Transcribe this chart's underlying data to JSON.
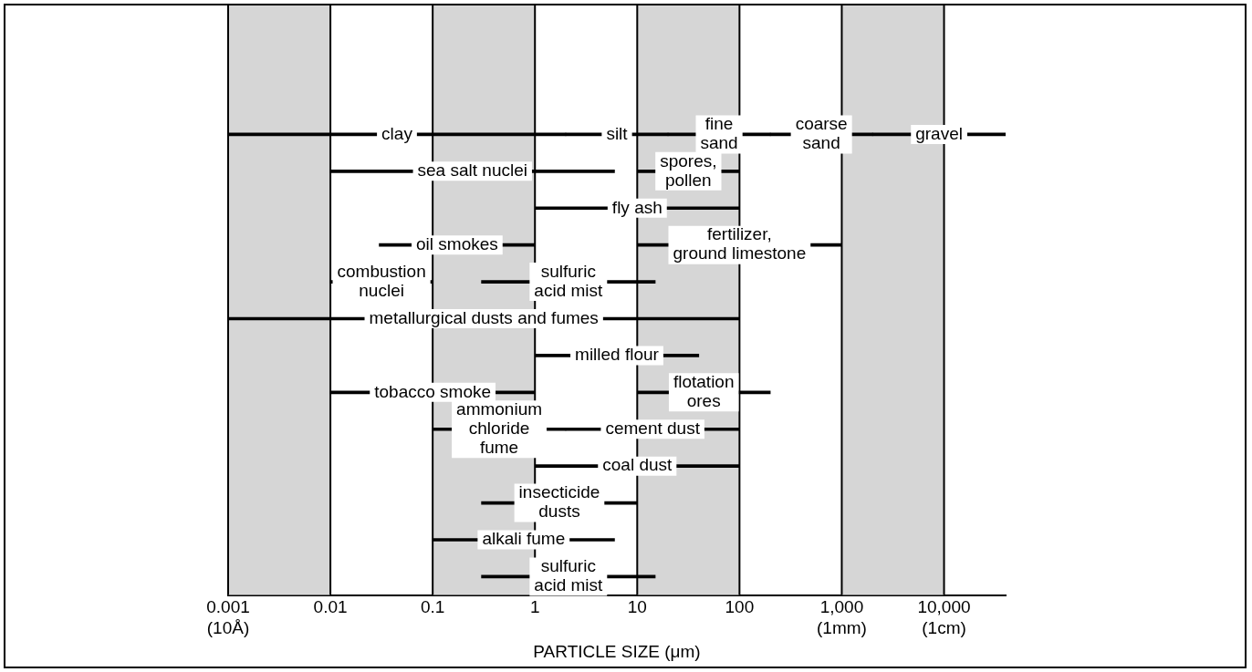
{
  "chart_data": {
    "type": "bar",
    "orientation": "horizontal",
    "grid": "x",
    "log": "x",
    "xlabel": "PARTICLE SIZE (μm)",
    "tick_labels": "x",
    "categories": [
      null,
      null,
      null,
      null,
      null,
      null,
      null,
      null,
      null,
      null,
      null,
      null,
      null,
      null,
      null,
      null
    ],
    "xlim": [
      0.001,
      40000
    ],
    "xticks": [
      {
        "value": 0.001,
        "label": "0.001\n(10Å)"
      },
      {
        "value": 0.01,
        "label": "0.01"
      },
      {
        "value": 0.1,
        "label": "0.1"
      },
      {
        "value": 1,
        "label": "1"
      },
      {
        "value": 10,
        "label": "10"
      },
      {
        "value": 100,
        "label": "100"
      },
      {
        "value": 1000,
        "label": "1,000\n(1mm)"
      },
      {
        "value": 10000,
        "label": "10,000\n(1cm)"
      }
    ],
    "bands": [
      {
        "axis": "x",
        "from": 0.001,
        "to": 0.01,
        "color": "#d6d6d6"
      },
      {
        "axis": "x",
        "from": 0.1,
        "to": 1,
        "color": "#d6d6d6"
      },
      {
        "axis": "x",
        "from": 10,
        "to": 100,
        "color": "#d6d6d6"
      },
      {
        "axis": "x",
        "from": 1000,
        "to": 10000,
        "color": "#d6d6d6"
      }
    ],
    "series": [
      {
        "color": "#000000",
        "base": [
          null,
          null,
          null,
          0.001,
          0.01,
          1,
          0.03,
          0.01,
          0.001,
          1,
          0.01,
          0.1,
          1,
          0.3,
          0.1,
          0.3
        ],
        "values": [
          null,
          null,
          null,
          1.999,
          5.99,
          99,
          0.97,
          0.09,
          99.999,
          39,
          0.99,
          1.9,
          99,
          9.7,
          5.9,
          14.7
        ],
        "value_labels": [
          null,
          null,
          null,
          "clay",
          "sea salt nuclei",
          "fly ash",
          "oil smokes",
          "combustion\nnuclei",
          "metallurgical dusts and fumes",
          "milled flour",
          "tobacco smoke",
          "ammonium\nchloride\nfume",
          "coal dust",
          "insecticide\ndusts",
          "alkali fume",
          "sulfuric\nacid mist"
        ]
      },
      {
        "color": "#000000",
        "base": [
          null,
          null,
          null,
          2,
          10,
          null,
          10,
          0.3,
          null,
          null,
          10,
          2,
          null,
          null,
          null,
          null
        ],
        "values": [
          null,
          null,
          null,
          18,
          90,
          null,
          990,
          14.7,
          null,
          null,
          190,
          98,
          null,
          null,
          null,
          null
        ],
        "value_labels": [
          null,
          null,
          null,
          "silt",
          "spores,\npollen",
          null,
          "fertilizer,\nground limestone",
          "sulfuric\nacid mist",
          null,
          null,
          "flotation\nores",
          "cement dust",
          null,
          null,
          null,
          null
        ]
      },
      {
        "color": "#000000",
        "base": [
          null,
          null,
          null,
          20,
          null,
          null,
          null,
          null,
          null,
          null,
          null,
          null,
          null,
          null,
          null,
          null
        ],
        "values": [
          null,
          null,
          null,
          180,
          null,
          null,
          null,
          null,
          null,
          null,
          null,
          null,
          null,
          null,
          null,
          null
        ],
        "value_labels": [
          null,
          null,
          null,
          "fine\nsand",
          null,
          null,
          null,
          null,
          null,
          null,
          null,
          null,
          null,
          null,
          null,
          null
        ]
      },
      {
        "color": "#000000",
        "base": [
          null,
          null,
          null,
          200,
          null,
          null,
          null,
          null,
          null,
          null,
          null,
          null,
          null,
          null,
          null,
          null
        ],
        "values": [
          null,
          null,
          null,
          1800,
          null,
          null,
          null,
          null,
          null,
          null,
          null,
          null,
          null,
          null,
          null,
          null
        ],
        "value_labels": [
          null,
          null,
          null,
          "coarse\nsand",
          null,
          null,
          null,
          null,
          null,
          null,
          null,
          null,
          null,
          null,
          null,
          null
        ]
      },
      {
        "color": "#000000",
        "base": [
          null,
          null,
          null,
          2000,
          null,
          null,
          null,
          null,
          null,
          null,
          null,
          null,
          null,
          null,
          null,
          null
        ],
        "values": [
          null,
          null,
          null,
          38000,
          null,
          null,
          null,
          null,
          null,
          null,
          null,
          null,
          null,
          null,
          null,
          null
        ],
        "value_labels": [
          null,
          null,
          null,
          "gravel",
          null,
          null,
          null,
          null,
          null,
          null,
          null,
          null,
          null,
          null,
          null,
          null
        ]
      }
    ]
  }
}
